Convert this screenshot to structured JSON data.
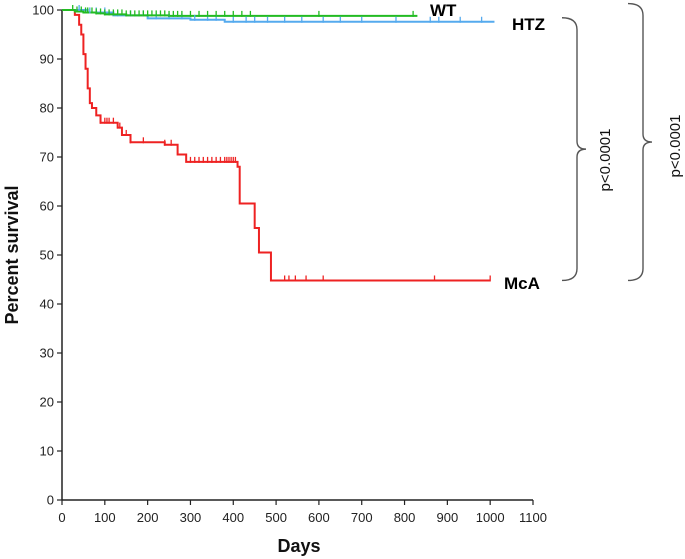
{
  "chart_data": {
    "type": "line",
    "step": true,
    "xlabel": "Days",
    "ylabel": "Percent survival",
    "xlim": [
      0,
      1100
    ],
    "ylim": [
      0,
      100
    ],
    "xticks": [
      0,
      100,
      200,
      300,
      400,
      500,
      600,
      700,
      800,
      900,
      1000,
      1100
    ],
    "yticks": [
      0,
      10,
      20,
      30,
      40,
      50,
      60,
      70,
      80,
      90,
      100
    ],
    "grid": false,
    "series": [
      {
        "name": "WT",
        "color": "#22bb22",
        "points": [
          [
            0,
            100
          ],
          [
            20,
            100
          ],
          [
            30,
            99.7
          ],
          [
            50,
            99.5
          ],
          [
            80,
            99.3
          ],
          [
            100,
            99.1
          ],
          [
            150,
            98.9
          ],
          [
            250,
            98.8
          ],
          [
            830,
            98.8
          ]
        ],
        "censored": [
          25,
          35,
          45,
          55,
          60,
          70,
          80,
          90,
          100,
          110,
          120,
          130,
          140,
          150,
          160,
          170,
          180,
          190,
          200,
          210,
          220,
          230,
          240,
          250,
          260,
          270,
          280,
          300,
          320,
          340,
          360,
          380,
          400,
          420,
          440,
          600,
          820
        ]
      },
      {
        "name": "HTZ",
        "color": "#55aaee",
        "points": [
          [
            0,
            100
          ],
          [
            60,
            99.5
          ],
          [
            120,
            98.9
          ],
          [
            200,
            98.3
          ],
          [
            300,
            98.0
          ],
          [
            380,
            97.6
          ],
          [
            1010,
            97.6
          ]
        ],
        "censored": [
          40,
          65,
          80,
          100,
          130,
          160,
          190,
          220,
          250,
          280,
          310,
          340,
          360,
          400,
          430,
          450,
          480,
          520,
          560,
          610,
          650,
          700,
          780,
          860,
          880,
          930,
          980
        ]
      },
      {
        "name": "McA",
        "color": "#ee2222",
        "points": [
          [
            0,
            100
          ],
          [
            30,
            99
          ],
          [
            40,
            97
          ],
          [
            45,
            95
          ],
          [
            50,
            91
          ],
          [
            55,
            88
          ],
          [
            60,
            84
          ],
          [
            65,
            81
          ],
          [
            70,
            80
          ],
          [
            80,
            78.5
          ],
          [
            90,
            77
          ],
          [
            130,
            76
          ],
          [
            140,
            74.5
          ],
          [
            160,
            73
          ],
          [
            240,
            72.5
          ],
          [
            270,
            70.5
          ],
          [
            290,
            69
          ],
          [
            410,
            68
          ],
          [
            415,
            60.5
          ],
          [
            440,
            60.5
          ],
          [
            450,
            55.5
          ],
          [
            460,
            50.5
          ],
          [
            480,
            50.5
          ],
          [
            488,
            44.8
          ],
          [
            1000,
            44.8
          ]
        ],
        "censored": [
          90,
          100,
          105,
          110,
          120,
          130,
          135,
          140,
          150,
          160,
          190,
          240,
          255,
          300,
          310,
          320,
          330,
          340,
          350,
          360,
          370,
          380,
          385,
          390,
          395,
          400,
          405,
          520,
          530,
          545,
          570,
          610,
          870,
          1000
        ]
      }
    ],
    "annotations": [
      {
        "text": "p<0.0001",
        "between": [
          "HTZ",
          "McA"
        ]
      },
      {
        "text": "p<0.0001",
        "between": [
          "WT",
          "McA"
        ]
      }
    ]
  }
}
